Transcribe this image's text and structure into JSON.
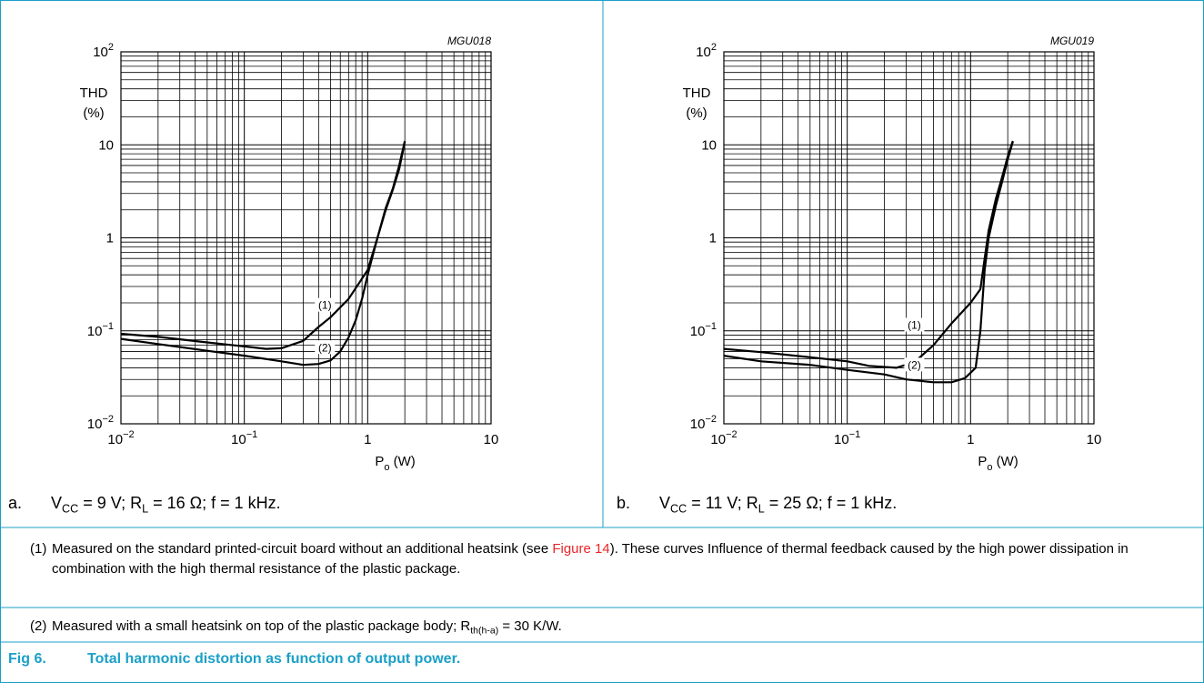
{
  "figure": {
    "title_label": "Fig 6.",
    "title_text": "Total harmonic distortion as function of output power.",
    "colors": {
      "border": "#1ba0c7",
      "title": "#1ba0c7",
      "link": "#e8262a",
      "curve": "#000000",
      "grid": "#000000"
    }
  },
  "panels": [
    {
      "caption_letter": "a.",
      "caption_parts": {
        "v": "V",
        "v_sub": "CC",
        "v_val": " = 9 V; R",
        "r_sub": "L",
        "rest": " = 16 Ω; f = 1 kHz."
      }
    },
    {
      "caption_letter": "b.",
      "caption_parts": {
        "v": "V",
        "v_sub": "CC",
        "v_val": " = 11 V; R",
        "r_sub": "L",
        "rest": " = 25 Ω; f = 1 kHz."
      }
    }
  ],
  "notes": {
    "note1_num": "(1)",
    "note1_pre": "Measured on the standard printed-circuit board without an additional heatsink (see ",
    "note1_link": "Figure 14",
    "note1_post": "). These curves Influence of thermal feedback caused by the high power dissipation in combination with the high thermal resistance of the plastic package.",
    "note2_num": "(2)",
    "note2_pre": "Measured with a small heatsink on top of the plastic package body; R",
    "note2_sub": "th(h-a)",
    "note2_post": " = 30 K/W."
  },
  "chart_data": [
    {
      "type": "line",
      "id_label": "MGU018",
      "x_scale": "log",
      "y_scale": "log",
      "xlim": [
        0.01,
        10
      ],
      "ylim": [
        0.01,
        100
      ],
      "x_ticks": [
        {
          "v": 0.01,
          "base": "10",
          "exp": "−2"
        },
        {
          "v": 0.1,
          "base": "10",
          "exp": "−1"
        },
        {
          "v": 1,
          "base": "1",
          "exp": ""
        },
        {
          "v": 10,
          "base": "10",
          "exp": ""
        }
      ],
      "y_ticks": [
        {
          "v": 100,
          "base": "10",
          "exp": "2"
        },
        {
          "v": 10,
          "base": "10",
          "exp": ""
        },
        {
          "v": 1,
          "base": "1",
          "exp": ""
        },
        {
          "v": 0.1,
          "base": "10",
          "exp": "−1"
        },
        {
          "v": 0.01,
          "base": "10",
          "exp": "−2"
        }
      ],
      "ylabel_lines": [
        "THD",
        "(%)"
      ],
      "xlabel": {
        "main": "P",
        "sub": "o",
        "unit": " (W)"
      },
      "grid": true,
      "series": [
        {
          "name": "(1)",
          "label_at": {
            "x": 0.45,
            "y": 0.18
          },
          "points": [
            [
              0.01,
              0.093
            ],
            [
              0.02,
              0.086
            ],
            [
              0.05,
              0.075
            ],
            [
              0.1,
              0.068
            ],
            [
              0.15,
              0.064
            ],
            [
              0.2,
              0.065
            ],
            [
              0.3,
              0.078
            ],
            [
              0.4,
              0.11
            ],
            [
              0.5,
              0.14
            ],
            [
              0.7,
              0.22
            ],
            [
              1.0,
              0.45
            ],
            [
              1.2,
              1.0
            ],
            [
              1.4,
              2.1
            ],
            [
              1.6,
              3.4
            ],
            [
              1.8,
              6.0
            ],
            [
              2.0,
              11.0
            ]
          ]
        },
        {
          "name": "(2)",
          "label_at": {
            "x": 0.45,
            "y": 0.063
          },
          "points": [
            [
              0.01,
              0.082
            ],
            [
              0.02,
              0.072
            ],
            [
              0.05,
              0.061
            ],
            [
              0.1,
              0.054
            ],
            [
              0.2,
              0.047
            ],
            [
              0.3,
              0.043
            ],
            [
              0.4,
              0.044
            ],
            [
              0.5,
              0.048
            ],
            [
              0.6,
              0.06
            ],
            [
              0.7,
              0.085
            ],
            [
              0.8,
              0.13
            ],
            [
              0.9,
              0.22
            ],
            [
              1.0,
              0.4
            ],
            [
              1.2,
              1.0
            ],
            [
              1.4,
              2.0
            ],
            [
              1.6,
              3.3
            ],
            [
              1.8,
              5.5
            ],
            [
              2.0,
              10.8
            ]
          ]
        }
      ]
    },
    {
      "type": "line",
      "id_label": "MGU019",
      "x_scale": "log",
      "y_scale": "log",
      "xlim": [
        0.01,
        10
      ],
      "ylim": [
        0.01,
        100
      ],
      "x_ticks": [
        {
          "v": 0.01,
          "base": "10",
          "exp": "−2"
        },
        {
          "v": 0.1,
          "base": "10",
          "exp": "−1"
        },
        {
          "v": 1,
          "base": "1",
          "exp": ""
        },
        {
          "v": 10,
          "base": "10",
          "exp": ""
        }
      ],
      "y_ticks": [
        {
          "v": 100,
          "base": "10",
          "exp": "2"
        },
        {
          "v": 10,
          "base": "10",
          "exp": ""
        },
        {
          "v": 1,
          "base": "1",
          "exp": ""
        },
        {
          "v": 0.1,
          "base": "10",
          "exp": "−1"
        },
        {
          "v": 0.01,
          "base": "10",
          "exp": "−2"
        }
      ],
      "ylabel_lines": [
        "THD",
        "(%)"
      ],
      "xlabel": {
        "main": "P",
        "sub": "o",
        "unit": " (W)"
      },
      "grid": true,
      "series": [
        {
          "name": "(1)",
          "label_at": {
            "x": 0.35,
            "y": 0.11
          },
          "points": [
            [
              0.01,
              0.064
            ],
            [
              0.02,
              0.059
            ],
            [
              0.05,
              0.052
            ],
            [
              0.1,
              0.047
            ],
            [
              0.15,
              0.042
            ],
            [
              0.25,
              0.04
            ],
            [
              0.35,
              0.046
            ],
            [
              0.5,
              0.07
            ],
            [
              0.7,
              0.12
            ],
            [
              1.0,
              0.2
            ],
            [
              1.2,
              0.28
            ],
            [
              1.3,
              0.6
            ],
            [
              1.4,
              1.2
            ],
            [
              1.6,
              2.6
            ],
            [
              1.8,
              4.5
            ],
            [
              2.0,
              7.5
            ],
            [
              2.2,
              11.0
            ]
          ]
        },
        {
          "name": "(2)",
          "label_at": {
            "x": 0.35,
            "y": 0.041
          },
          "points": [
            [
              0.01,
              0.054
            ],
            [
              0.02,
              0.047
            ],
            [
              0.05,
              0.043
            ],
            [
              0.1,
              0.038
            ],
            [
              0.2,
              0.034
            ],
            [
              0.3,
              0.03
            ],
            [
              0.5,
              0.028
            ],
            [
              0.7,
              0.028
            ],
            [
              0.9,
              0.031
            ],
            [
              1.1,
              0.04
            ],
            [
              1.2,
              0.1
            ],
            [
              1.3,
              0.45
            ],
            [
              1.4,
              1.0
            ],
            [
              1.6,
              2.2
            ],
            [
              1.8,
              4.0
            ],
            [
              2.0,
              7.0
            ],
            [
              2.2,
              10.8
            ]
          ]
        }
      ]
    }
  ]
}
